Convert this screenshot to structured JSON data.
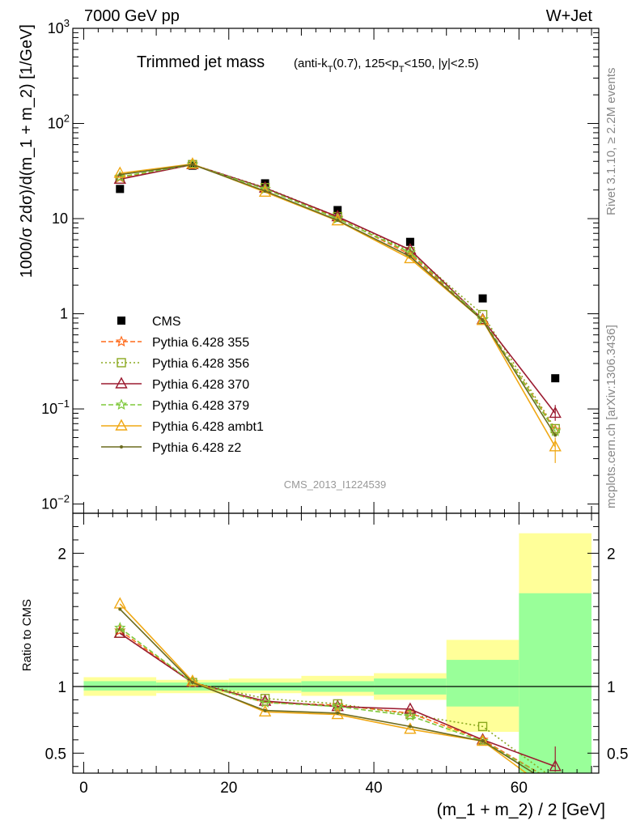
{
  "header": {
    "energy": "7000 GeV pp",
    "process": "W+Jet",
    "plot_title": "Trimmed jet mass",
    "plot_title_sub": "(anti-kT(0.7), 125<pT<150, |y|<2.5)",
    "side_rivet": "Rivet 3.1.10, ≥ 2.2M events",
    "side_mcplots": "mcplots.cern.ch [arXiv:1306.3436]",
    "analysis_id": "CMS_2013_I1224539"
  },
  "axes": {
    "upper_ylabel": "1000/σ 2dσ)/d(m_1 + m_2) [1/GeV]",
    "lower_ylabel": "Ratio to CMS",
    "xlabel": "(m_1 + m_2) / 2 [GeV]"
  },
  "chart_data": [
    {
      "type": "scatter",
      "panel": "main",
      "yscale": "log",
      "xlim": [
        -1.5,
        71
      ],
      "ylim": [
        0.008,
        1000
      ],
      "x": [
        5,
        15,
        25,
        35,
        45,
        55,
        65
      ],
      "series": [
        {
          "name": "CMS",
          "color": "#000000",
          "marker": "square",
          "values": [
            20.5,
            36.0,
            23.5,
            12.3,
            5.7,
            1.45,
            0.21
          ]
        },
        {
          "name": "Pythia 6.428 355",
          "color": "#ff6a1a",
          "marker": "star",
          "dash": "6,3",
          "values": [
            27.0,
            37.0,
            20.5,
            10.2,
            4.2,
            0.87,
            0.06
          ]
        },
        {
          "name": "Pythia 6.428 356",
          "color": "#8aa81e",
          "marker": "open-square",
          "dash": "2,3",
          "values": [
            26.0,
            37.0,
            21.2,
            10.5,
            4.5,
            0.98,
            0.062
          ]
        },
        {
          "name": "Pythia 6.428 370",
          "color": "#9b1b30",
          "marker": "open-triangle",
          "dash": "",
          "values": [
            26.0,
            37.0,
            21.0,
            10.5,
            4.7,
            0.87,
            0.09
          ]
        },
        {
          "name": "Pythia 6.428 379",
          "color": "#7ec83a",
          "marker": "star",
          "dash": "6,3",
          "values": [
            27.5,
            37.0,
            20.5,
            10.0,
            4.4,
            0.87,
            0.058
          ]
        },
        {
          "name": "Pythia 6.428 ambt1",
          "color": "#f0a814",
          "marker": "open-triangle",
          "dash": "",
          "values": [
            30.0,
            37.5,
            19.0,
            9.5,
            3.8,
            0.85,
            0.04
          ]
        },
        {
          "name": "Pythia 6.428 z2",
          "color": "#6b6b1f",
          "marker": "dot",
          "dash": "",
          "values": [
            29.0,
            37.0,
            19.5,
            9.6,
            4.0,
            0.85,
            0.053
          ]
        }
      ],
      "tick_labels_y": [
        "10^-2",
        "10^-1",
        "1",
        "10",
        "10^2",
        "10^3"
      ]
    },
    {
      "type": "line",
      "panel": "ratio",
      "xlim": [
        -1.5,
        71
      ],
      "ylim": [
        0.35,
        2.3
      ],
      "x": [
        5,
        15,
        25,
        35,
        45,
        55,
        65
      ],
      "bands": {
        "bin_edges": [
          0,
          10,
          20,
          30,
          40,
          50,
          60,
          70
        ],
        "yellow": [
          [
            0.93,
            1.07
          ],
          [
            0.95,
            1.05
          ],
          [
            0.95,
            1.06
          ],
          [
            0.93,
            1.08
          ],
          [
            0.9,
            1.1
          ],
          [
            0.66,
            1.35
          ],
          [
            0.35,
            2.15
          ]
        ],
        "green": [
          [
            0.97,
            1.04
          ],
          [
            0.97,
            1.03
          ],
          [
            0.97,
            1.03
          ],
          [
            0.96,
            1.04
          ],
          [
            0.94,
            1.06
          ],
          [
            0.85,
            1.2
          ],
          [
            0.35,
            1.7
          ]
        ]
      },
      "series": [
        {
          "name": "Pythia 6.428 355",
          "values": [
            1.42,
            1.03,
            0.88,
            0.86,
            0.8,
            0.6,
            0.28
          ]
        },
        {
          "name": "Pythia 6.428 356",
          "values": [
            1.4,
            1.03,
            0.91,
            0.87,
            0.79,
            0.7,
            0.3
          ]
        },
        {
          "name": "Pythia 6.428 370",
          "values": [
            1.4,
            1.03,
            0.89,
            0.85,
            0.83,
            0.6,
            0.4
          ]
        },
        {
          "name": "Pythia 6.428 379",
          "values": [
            1.44,
            1.03,
            0.88,
            0.85,
            0.78,
            0.59,
            0.28
          ]
        },
        {
          "name": "Pythia 6.428 ambt1",
          "values": [
            1.62,
            1.04,
            0.81,
            0.79,
            0.68,
            0.59,
            0.19
          ]
        },
        {
          "name": "Pythia 6.428 z2",
          "values": [
            1.58,
            1.03,
            0.82,
            0.8,
            0.7,
            0.59,
            0.25
          ]
        }
      ],
      "tick_labels_y": [
        "0.5",
        "1",
        "2"
      ],
      "tick_labels_x": [
        "0",
        "20",
        "40",
        "60"
      ]
    }
  ]
}
